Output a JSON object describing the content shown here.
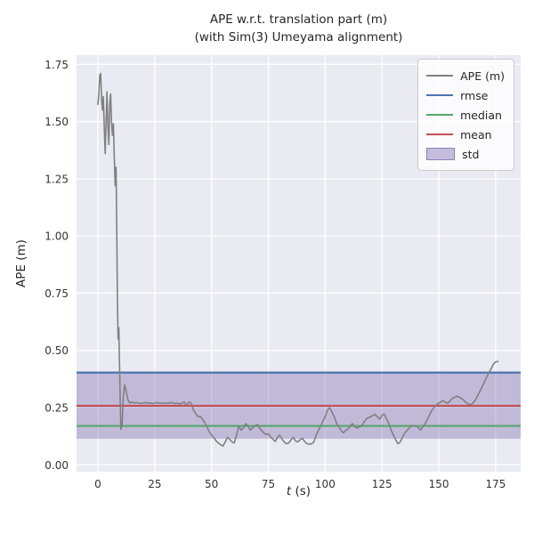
{
  "chart_data": {
    "type": "line",
    "title": "APE w.r.t. translation part (m)",
    "subtitle": "(with Sim(3) Umeyama alignment)",
    "xlabel": "t (s)",
    "xlabel_parts": {
      "var": "t",
      "unit": " (s)"
    },
    "ylabel": "APE (m)",
    "xlim": [
      -9.4,
      186
    ],
    "ylim": [
      -0.03,
      1.79
    ],
    "xticks": [
      0,
      25,
      50,
      75,
      100,
      125,
      150,
      175
    ],
    "xtick_labels": [
      "0",
      "25",
      "50",
      "75",
      "100",
      "125",
      "150",
      "175"
    ],
    "yticks": [
      0,
      0.25,
      0.5,
      0.75,
      1.0,
      1.25,
      1.5,
      1.75
    ],
    "ytick_labels": [
      "0.00",
      "0.25",
      "0.50",
      "0.75",
      "1.00",
      "1.25",
      "1.50",
      "1.75"
    ],
    "grid": true,
    "legend_position": "upper right",
    "background_color": "#eaeaf2",
    "grid_color": "#ffffff",
    "series": [
      {
        "name": "APE (m)",
        "type": "line",
        "color": "#808080",
        "points": [
          [
            0,
            1.575
          ],
          [
            0.4,
            1.62
          ],
          [
            0.8,
            1.7
          ],
          [
            1.2,
            1.71
          ],
          [
            1.6,
            1.6
          ],
          [
            2,
            1.55
          ],
          [
            2.4,
            1.61
          ],
          [
            2.8,
            1.47
          ],
          [
            3.2,
            1.36
          ],
          [
            3.6,
            1.5
          ],
          [
            4,
            1.63
          ],
          [
            4.4,
            1.48
          ],
          [
            4.8,
            1.4
          ],
          [
            5.2,
            1.58
          ],
          [
            5.6,
            1.62
          ],
          [
            6,
            1.5
          ],
          [
            6.4,
            1.44
          ],
          [
            6.8,
            1.49
          ],
          [
            7.2,
            1.35
          ],
          [
            7.6,
            1.22
          ],
          [
            8,
            1.3
          ],
          [
            8.3,
            1.02
          ],
          [
            8.6,
            0.7
          ],
          [
            8.9,
            0.55
          ],
          [
            9.2,
            0.6
          ],
          [
            9.5,
            0.44
          ],
          [
            9.8,
            0.3
          ],
          [
            10.1,
            0.155
          ],
          [
            10.6,
            0.17
          ],
          [
            11.2,
            0.3
          ],
          [
            11.8,
            0.35
          ],
          [
            12.5,
            0.32
          ],
          [
            13.2,
            0.285
          ],
          [
            14,
            0.27
          ],
          [
            15,
            0.275
          ],
          [
            16,
            0.27
          ],
          [
            17,
            0.272
          ],
          [
            18,
            0.27
          ],
          [
            19,
            0.268
          ],
          [
            20,
            0.27
          ],
          [
            21,
            0.272
          ],
          [
            22,
            0.27
          ],
          [
            23,
            0.27
          ],
          [
            24,
            0.268
          ],
          [
            25,
            0.27
          ],
          [
            26,
            0.272
          ],
          [
            27,
            0.27
          ],
          [
            28,
            0.27
          ],
          [
            29,
            0.268
          ],
          [
            30,
            0.27
          ],
          [
            31,
            0.27
          ],
          [
            32,
            0.272
          ],
          [
            33,
            0.27
          ],
          [
            34,
            0.268
          ],
          [
            35,
            0.27
          ],
          [
            36,
            0.265
          ],
          [
            37,
            0.27
          ],
          [
            38,
            0.275
          ],
          [
            39,
            0.26
          ],
          [
            40,
            0.275
          ],
          [
            41,
            0.27
          ],
          [
            42,
            0.24
          ],
          [
            43,
            0.225
          ],
          [
            44,
            0.21
          ],
          [
            45,
            0.212
          ],
          [
            46,
            0.2
          ],
          [
            47,
            0.185
          ],
          [
            48,
            0.165
          ],
          [
            49,
            0.145
          ],
          [
            50,
            0.13
          ],
          [
            51,
            0.12
          ],
          [
            52,
            0.105
          ],
          [
            53,
            0.095
          ],
          [
            54,
            0.088
          ],
          [
            55,
            0.082
          ],
          [
            56,
            0.1
          ],
          [
            57,
            0.12
          ],
          [
            58,
            0.112
          ],
          [
            59,
            0.1
          ],
          [
            60,
            0.096
          ],
          [
            61,
            0.13
          ],
          [
            62,
            0.17
          ],
          [
            63,
            0.152
          ],
          [
            64,
            0.16
          ],
          [
            65,
            0.18
          ],
          [
            66,
            0.172
          ],
          [
            67,
            0.152
          ],
          [
            68,
            0.16
          ],
          [
            69,
            0.17
          ],
          [
            70,
            0.176
          ],
          [
            71,
            0.162
          ],
          [
            72,
            0.15
          ],
          [
            73,
            0.14
          ],
          [
            74,
            0.132
          ],
          [
            75,
            0.136
          ],
          [
            76,
            0.122
          ],
          [
            77,
            0.112
          ],
          [
            78,
            0.102
          ],
          [
            79,
            0.12
          ],
          [
            80,
            0.13
          ],
          [
            81,
            0.112
          ],
          [
            82,
            0.1
          ],
          [
            83,
            0.092
          ],
          [
            84,
            0.096
          ],
          [
            85,
            0.11
          ],
          [
            86,
            0.12
          ],
          [
            87,
            0.104
          ],
          [
            88,
            0.1
          ],
          [
            89,
            0.11
          ],
          [
            90,
            0.116
          ],
          [
            91,
            0.102
          ],
          [
            92,
            0.092
          ],
          [
            93,
            0.09
          ],
          [
            94,
            0.092
          ],
          [
            95,
            0.1
          ],
          [
            96,
            0.13
          ],
          [
            97,
            0.15
          ],
          [
            98,
            0.17
          ],
          [
            99,
            0.19
          ],
          [
            100,
            0.21
          ],
          [
            101,
            0.238
          ],
          [
            102,
            0.25
          ],
          [
            103,
            0.23
          ],
          [
            104,
            0.21
          ],
          [
            105,
            0.182
          ],
          [
            106,
            0.166
          ],
          [
            107,
            0.15
          ],
          [
            108,
            0.14
          ],
          [
            109,
            0.15
          ],
          [
            110,
            0.156
          ],
          [
            111,
            0.17
          ],
          [
            112,
            0.18
          ],
          [
            113,
            0.166
          ],
          [
            114,
            0.16
          ],
          [
            115,
            0.166
          ],
          [
            116,
            0.17
          ],
          [
            117,
            0.186
          ],
          [
            118,
            0.2
          ],
          [
            119,
            0.206
          ],
          [
            120,
            0.21
          ],
          [
            121,
            0.216
          ],
          [
            122,
            0.22
          ],
          [
            123,
            0.21
          ],
          [
            124,
            0.2
          ],
          [
            125,
            0.216
          ],
          [
            126,
            0.222
          ],
          [
            127,
            0.2
          ],
          [
            128,
            0.18
          ],
          [
            129,
            0.152
          ],
          [
            130,
            0.13
          ],
          [
            131,
            0.11
          ],
          [
            132,
            0.092
          ],
          [
            133,
            0.1
          ],
          [
            134,
            0.12
          ],
          [
            135,
            0.14
          ],
          [
            136,
            0.15
          ],
          [
            137,
            0.162
          ],
          [
            138,
            0.17
          ],
          [
            139,
            0.172
          ],
          [
            140,
            0.17
          ],
          [
            141,
            0.162
          ],
          [
            142,
            0.152
          ],
          [
            143,
            0.166
          ],
          [
            144,
            0.18
          ],
          [
            145,
            0.2
          ],
          [
            146,
            0.22
          ],
          [
            147,
            0.24
          ],
          [
            148,
            0.252
          ],
          [
            149,
            0.262
          ],
          [
            150,
            0.27
          ],
          [
            151,
            0.276
          ],
          [
            152,
            0.28
          ],
          [
            153,
            0.272
          ],
          [
            154,
            0.27
          ],
          [
            155,
            0.28
          ],
          [
            156,
            0.29
          ],
          [
            157,
            0.296
          ],
          [
            158,
            0.3
          ],
          [
            159,
            0.296
          ],
          [
            160,
            0.29
          ],
          [
            161,
            0.282
          ],
          [
            162,
            0.272
          ],
          [
            163,
            0.266
          ],
          [
            164,
            0.262
          ],
          [
            165,
            0.27
          ],
          [
            166,
            0.282
          ],
          [
            167,
            0.3
          ],
          [
            168,
            0.32
          ],
          [
            169,
            0.34
          ],
          [
            170,
            0.36
          ],
          [
            171,
            0.382
          ],
          [
            172,
            0.402
          ],
          [
            173,
            0.42
          ],
          [
            174,
            0.44
          ],
          [
            175,
            0.45
          ],
          [
            176,
            0.452
          ]
        ]
      }
    ],
    "stat_lines": [
      {
        "name": "rmse",
        "value": 0.403,
        "color": "#4c72b0"
      },
      {
        "name": "mean",
        "value": 0.258,
        "color": "#c44e52"
      },
      {
        "name": "median",
        "value": 0.17,
        "color": "#55a868"
      }
    ],
    "std_band": {
      "name": "std",
      "low": 0.114,
      "high": 0.402,
      "color": "#8172b2",
      "opacity": 0.4
    },
    "legend": {
      "items": [
        {
          "key": "ape",
          "label": "APE (m)"
        },
        {
          "key": "rmse",
          "label": "rmse"
        },
        {
          "key": "median",
          "label": "median"
        },
        {
          "key": "mean",
          "label": "mean"
        },
        {
          "key": "std",
          "label": "std"
        }
      ]
    }
  }
}
